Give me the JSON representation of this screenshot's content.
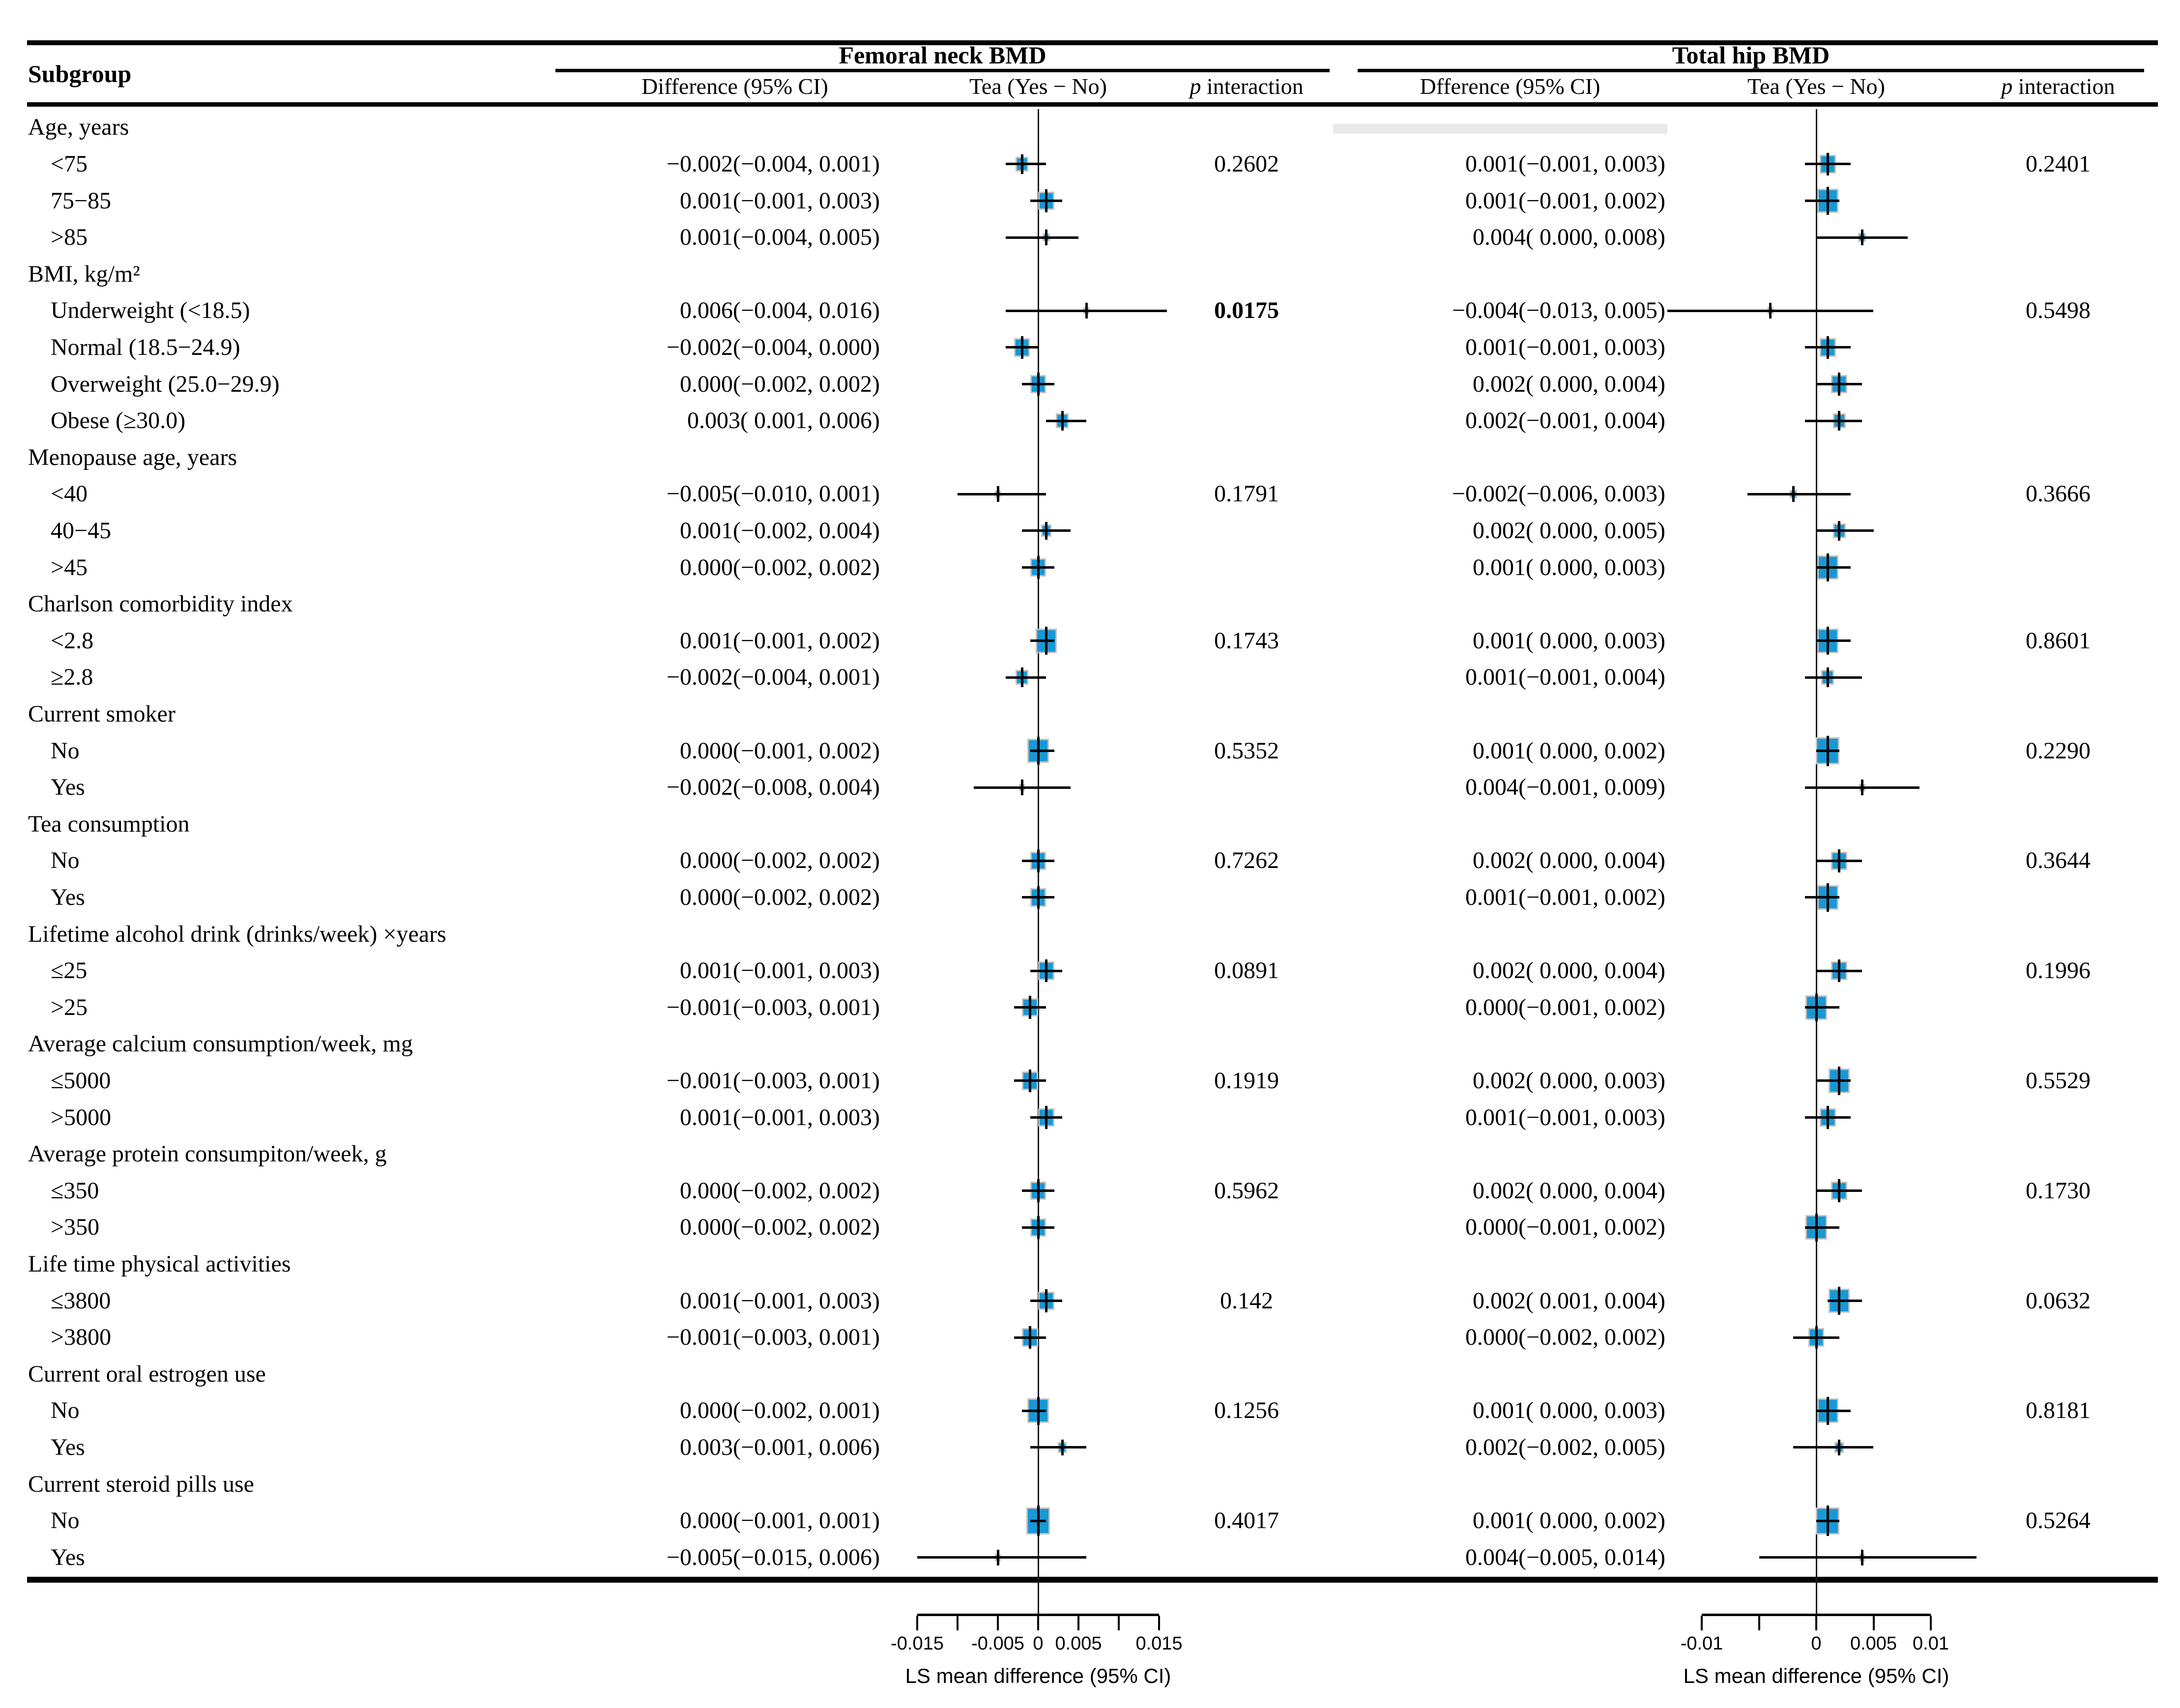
{
  "header": {
    "subgroup": "Subgroup",
    "left_group": {
      "title": "Femoral neck BMD",
      "diff": "Difference (95% CI)",
      "tea": "Tea (Yes − No)",
      "p": "p",
      "interaction": "interaction"
    },
    "right_group": {
      "title": "Total hip BMD",
      "diff": "Dfference (95% CI)",
      "tea": "Tea (Yes − No)",
      "p": "p",
      "interaction": "interaction"
    }
  },
  "colors": {
    "marker_fill": "#1898d5",
    "marker_border": "#c2c2c2",
    "ci_line": "#000000",
    "zero_line": "#1a1a1a",
    "rule": "#000000",
    "stripe": "#e9e9e9",
    "text": "#000000"
  },
  "chart_data": {
    "type": "forest",
    "panels": [
      {
        "id": "fn",
        "title": "Femoral neck BMD",
        "xlabel": "LS mean difference (95% CI)",
        "xlim": [
          -0.015,
          0.015
        ],
        "tick_step": 0.005,
        "tick_labels": [
          {
            "v": -0.015,
            "t": "-0.015"
          },
          {
            "v": -0.005,
            "t": "-0.005"
          },
          {
            "v": 0,
            "t": "0"
          },
          {
            "v": 0.005,
            "t": "0.005"
          },
          {
            "v": 0.015,
            "t": "0.015"
          }
        ]
      },
      {
        "id": "th",
        "title": "Total hip BMD",
        "xlabel": "LS mean difference (95% CI)",
        "xlim": [
          -0.01,
          0.01
        ],
        "tick_step": 0.005,
        "tick_labels": [
          {
            "v": -0.01,
            "t": "-0.01"
          },
          {
            "v": 0,
            "t": "0"
          },
          {
            "v": 0.005,
            "t": "0.005"
          },
          {
            "v": 0.01,
            "t": "0.01"
          }
        ]
      }
    ],
    "rows": [
      {
        "type": "section",
        "label": "Age, years"
      },
      {
        "type": "data",
        "label": "<75",
        "fn": {
          "text": "−0.002(−0.004, 0.001)",
          "est": -0.002,
          "lo": -0.004,
          "hi": 0.001
        },
        "fn_p": "0.2602",
        "th": {
          "text": "0.001(−0.001, 0.003)",
          "est": 0.001,
          "lo": -0.001,
          "hi": 0.003
        },
        "th_p": "0.2401"
      },
      {
        "type": "data",
        "label": "75−85",
        "fn": {
          "text": "0.001(−0.001, 0.003)",
          "est": 0.001,
          "lo": -0.001,
          "hi": 0.003
        },
        "th": {
          "text": "0.001(−0.001, 0.002)",
          "est": 0.001,
          "lo": -0.001,
          "hi": 0.002
        }
      },
      {
        "type": "data",
        "label": ">85",
        "fn": {
          "text": "0.001(−0.004, 0.005)",
          "est": 0.001,
          "lo": -0.004,
          "hi": 0.005
        },
        "th": {
          "text": "0.004( 0.000, 0.008)",
          "est": 0.004,
          "lo": 0.0,
          "hi": 0.008
        }
      },
      {
        "type": "section",
        "label": "BMI, kg/m²"
      },
      {
        "type": "data",
        "label": "Underweight (<18.5)",
        "fn": {
          "text": "0.006(−0.004, 0.016)",
          "est": 0.006,
          "lo": -0.004,
          "hi": 0.016
        },
        "fn_p": "0.0175",
        "fn_p_bold": true,
        "th": {
          "text": "−0.004(−0.013, 0.005)",
          "est": -0.004,
          "lo": -0.013,
          "hi": 0.005
        },
        "th_p": "0.5498"
      },
      {
        "type": "data",
        "label": "Normal (18.5−24.9)",
        "fn": {
          "text": "−0.002(−0.004, 0.000)",
          "est": -0.002,
          "lo": -0.004,
          "hi": 0.0
        },
        "th": {
          "text": "0.001(−0.001, 0.003)",
          "est": 0.001,
          "lo": -0.001,
          "hi": 0.003
        }
      },
      {
        "type": "data",
        "label": "Overweight (25.0−29.9)",
        "fn": {
          "text": "0.000(−0.002, 0.002)",
          "est": 0.0,
          "lo": -0.002,
          "hi": 0.002
        },
        "th": {
          "text": "0.002( 0.000, 0.004)",
          "est": 0.002,
          "lo": 0.0,
          "hi": 0.004
        }
      },
      {
        "type": "data",
        "label": "Obese (≥30.0)",
        "fn": {
          "text": "0.003( 0.001, 0.006)",
          "est": 0.003,
          "lo": 0.001,
          "hi": 0.006
        },
        "th": {
          "text": "0.002(−0.001, 0.004)",
          "est": 0.002,
          "lo": -0.001,
          "hi": 0.004
        }
      },
      {
        "type": "section",
        "label": "Menopause age, years"
      },
      {
        "type": "data",
        "label": "<40",
        "fn": {
          "text": "−0.005(−0.010, 0.001)",
          "est": -0.005,
          "lo": -0.01,
          "hi": 0.001
        },
        "fn_p": "0.1791",
        "th": {
          "text": "−0.002(−0.006, 0.003)",
          "est": -0.002,
          "lo": -0.006,
          "hi": 0.003
        },
        "th_p": "0.3666"
      },
      {
        "type": "data",
        "label": "40−45",
        "fn": {
          "text": "0.001(−0.002, 0.004)",
          "est": 0.001,
          "lo": -0.002,
          "hi": 0.004
        },
        "th": {
          "text": "0.002( 0.000, 0.005)",
          "est": 0.002,
          "lo": 0.0,
          "hi": 0.005
        }
      },
      {
        "type": "data",
        "label": ">45",
        "fn": {
          "text": "0.000(−0.002, 0.002)",
          "est": 0.0,
          "lo": -0.002,
          "hi": 0.002
        },
        "th": {
          "text": "0.001( 0.000, 0.003)",
          "est": 0.001,
          "lo": 0.0,
          "hi": 0.003
        }
      },
      {
        "type": "section",
        "label": "Charlson comorbidity index"
      },
      {
        "type": "data",
        "label": "<2.8",
        "fn": {
          "text": "0.001(−0.001, 0.002)",
          "est": 0.001,
          "lo": -0.001,
          "hi": 0.002
        },
        "fn_p": "0.1743",
        "th": {
          "text": "0.001( 0.000, 0.003)",
          "est": 0.001,
          "lo": 0.0,
          "hi": 0.003
        },
        "th_p": "0.8601"
      },
      {
        "type": "data",
        "label": "≥2.8",
        "fn": {
          "text": "−0.002(−0.004, 0.001)",
          "est": -0.002,
          "lo": -0.004,
          "hi": 0.001
        },
        "th": {
          "text": "0.001(−0.001, 0.004)",
          "est": 0.001,
          "lo": -0.001,
          "hi": 0.004
        }
      },
      {
        "type": "section",
        "label": "Current smoker"
      },
      {
        "type": "data",
        "label": "No",
        "fn": {
          "text": "0.000(−0.001, 0.002)",
          "est": 0.0,
          "lo": -0.001,
          "hi": 0.002
        },
        "fn_p": "0.5352",
        "th": {
          "text": "0.001( 0.000, 0.002)",
          "est": 0.001,
          "lo": 0.0,
          "hi": 0.002
        },
        "th_p": "0.2290"
      },
      {
        "type": "data",
        "label": "Yes",
        "fn": {
          "text": "−0.002(−0.008, 0.004)",
          "est": -0.002,
          "lo": -0.008,
          "hi": 0.004
        },
        "th": {
          "text": "0.004(−0.001, 0.009)",
          "est": 0.004,
          "lo": -0.001,
          "hi": 0.009
        }
      },
      {
        "type": "section",
        "label": "Tea consumption"
      },
      {
        "type": "data",
        "label": "No",
        "fn": {
          "text": "0.000(−0.002, 0.002)",
          "est": 0.0,
          "lo": -0.002,
          "hi": 0.002
        },
        "fn_p": "0.7262",
        "th": {
          "text": "0.002( 0.000, 0.004)",
          "est": 0.002,
          "lo": 0.0,
          "hi": 0.004
        },
        "th_p": "0.3644"
      },
      {
        "type": "data",
        "label": "Yes",
        "fn": {
          "text": "0.000(−0.002, 0.002)",
          "est": 0.0,
          "lo": -0.002,
          "hi": 0.002
        },
        "th": {
          "text": "0.001(−0.001, 0.002)",
          "est": 0.001,
          "lo": -0.001,
          "hi": 0.002
        }
      },
      {
        "type": "section",
        "label": "Lifetime alcohol drink (drinks/week) ×years"
      },
      {
        "type": "data",
        "label": "≤25",
        "fn": {
          "text": "0.001(−0.001, 0.003)",
          "est": 0.001,
          "lo": -0.001,
          "hi": 0.003
        },
        "fn_p": "0.0891",
        "th": {
          "text": "0.002( 0.000, 0.004)",
          "est": 0.002,
          "lo": 0.0,
          "hi": 0.004
        },
        "th_p": "0.1996"
      },
      {
        "type": "data",
        "label": ">25",
        "fn": {
          "text": "−0.001(−0.003, 0.001)",
          "est": -0.001,
          "lo": -0.003,
          "hi": 0.001
        },
        "th": {
          "text": "0.000(−0.001, 0.002)",
          "est": 0.0,
          "lo": -0.001,
          "hi": 0.002
        }
      },
      {
        "type": "section",
        "label": "Average calcium consumption/week, mg"
      },
      {
        "type": "data",
        "label": "≤5000",
        "fn": {
          "text": "−0.001(−0.003, 0.001)",
          "est": -0.001,
          "lo": -0.003,
          "hi": 0.001
        },
        "fn_p": "0.1919",
        "th": {
          "text": "0.002( 0.000, 0.003)",
          "est": 0.002,
          "lo": 0.0,
          "hi": 0.003
        },
        "th_p": "0.5529"
      },
      {
        "type": "data",
        "label": ">5000",
        "fn": {
          "text": "0.001(−0.001, 0.003)",
          "est": 0.001,
          "lo": -0.001,
          "hi": 0.003
        },
        "th": {
          "text": "0.001(−0.001, 0.003)",
          "est": 0.001,
          "lo": -0.001,
          "hi": 0.003
        }
      },
      {
        "type": "section",
        "label": "Average protein consumpiton/week, g"
      },
      {
        "type": "data",
        "label": "≤350",
        "fn": {
          "text": "0.000(−0.002, 0.002)",
          "est": 0.0,
          "lo": -0.002,
          "hi": 0.002
        },
        "fn_p": "0.5962",
        "th": {
          "text": "0.002( 0.000, 0.004)",
          "est": 0.002,
          "lo": 0.0,
          "hi": 0.004
        },
        "th_p": "0.1730"
      },
      {
        "type": "data",
        "label": ">350",
        "fn": {
          "text": "0.000(−0.002, 0.002)",
          "est": 0.0,
          "lo": -0.002,
          "hi": 0.002
        },
        "th": {
          "text": "0.000(−0.001, 0.002)",
          "est": 0.0,
          "lo": -0.001,
          "hi": 0.002
        }
      },
      {
        "type": "section",
        "label": "Life time physical activities"
      },
      {
        "type": "data",
        "label": "≤3800",
        "fn": {
          "text": "0.001(−0.001, 0.003)",
          "est": 0.001,
          "lo": -0.001,
          "hi": 0.003
        },
        "fn_p": "0.142",
        "th": {
          "text": "0.002( 0.001, 0.004)",
          "est": 0.002,
          "lo": 0.001,
          "hi": 0.004
        },
        "th_p": "0.0632"
      },
      {
        "type": "data",
        "label": ">3800",
        "fn": {
          "text": "−0.001(−0.003, 0.001)",
          "est": -0.001,
          "lo": -0.003,
          "hi": 0.001
        },
        "th": {
          "text": "0.000(−0.002, 0.002)",
          "est": 0.0,
          "lo": -0.002,
          "hi": 0.002
        }
      },
      {
        "type": "section",
        "label": "Current oral estrogen use"
      },
      {
        "type": "data",
        "label": "No",
        "fn": {
          "text": "0.000(−0.002, 0.001)",
          "est": 0.0,
          "lo": -0.002,
          "hi": 0.001
        },
        "fn_p": "0.1256",
        "th": {
          "text": "0.001( 0.000, 0.003)",
          "est": 0.001,
          "lo": 0.0,
          "hi": 0.003
        },
        "th_p": "0.8181"
      },
      {
        "type": "data",
        "label": "Yes",
        "fn": {
          "text": "0.003(−0.001, 0.006)",
          "est": 0.003,
          "lo": -0.001,
          "hi": 0.006
        },
        "th": {
          "text": "0.002(−0.002, 0.005)",
          "est": 0.002,
          "lo": -0.002,
          "hi": 0.005
        }
      },
      {
        "type": "section",
        "label": "Current steroid pills use"
      },
      {
        "type": "data",
        "label": "No",
        "fn": {
          "text": "0.000(−0.001, 0.001)",
          "est": 0.0,
          "lo": -0.001,
          "hi": 0.001
        },
        "fn_p": "0.4017",
        "th": {
          "text": "0.001( 0.000, 0.002)",
          "est": 0.001,
          "lo": 0.0,
          "hi": 0.002
        },
        "th_p": "0.5264"
      },
      {
        "type": "data",
        "label": "Yes",
        "fn": {
          "text": "−0.005(−0.015, 0.006)",
          "est": -0.005,
          "lo": -0.015,
          "hi": 0.006
        },
        "th": {
          "text": "0.004(−0.005, 0.014)",
          "est": 0.004,
          "lo": -0.005,
          "hi": 0.014
        }
      }
    ]
  }
}
